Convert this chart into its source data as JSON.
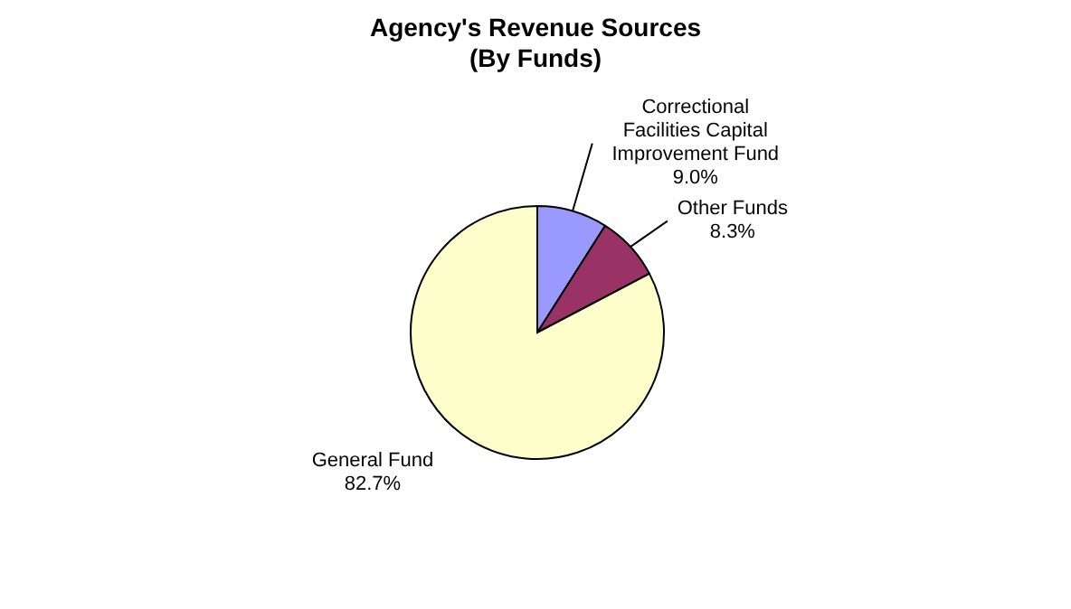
{
  "chart_data": {
    "type": "pie",
    "title": "Agency's Revenue Sources\n(By Funds)",
    "categories": [
      "Correctional Facilities Capital Improvement Fund",
      "Other Funds",
      "General Fund"
    ],
    "values": [
      9.0,
      8.3,
      82.7
    ],
    "value_labels": [
      "9.0%",
      "8.3%",
      "82.7%"
    ],
    "colors": [
      "#9999ff",
      "#993366",
      "#ffffcc"
    ],
    "legend": false
  }
}
